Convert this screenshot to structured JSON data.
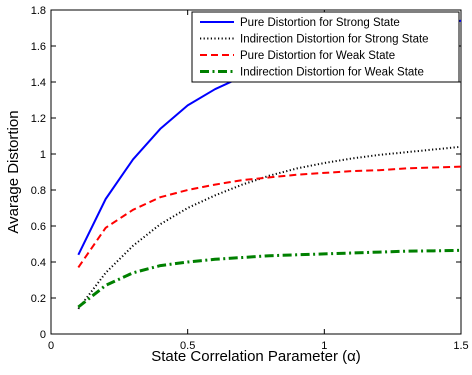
{
  "chart_data": {
    "type": "line",
    "title": "",
    "xlabel": "State Correlation Parameter (α)",
    "ylabel": "Avarage Distortion",
    "xlim": [
      0,
      1.5
    ],
    "ylim": [
      0,
      1.8
    ],
    "xticks": [
      "0",
      "0.5",
      "1",
      "1.5"
    ],
    "yticks": [
      "0",
      "0.2",
      "0.4",
      "0.6",
      "0.8",
      "1",
      "1.2",
      "1.4",
      "1.6",
      "1.8"
    ],
    "grid": false,
    "legend_position": "top-right",
    "series": [
      {
        "name": "Pure Distortion for Strong State",
        "color": "#0000ff",
        "style": "solid",
        "x": [
          0.1,
          0.2,
          0.3,
          0.4,
          0.5,
          0.6,
          0.7,
          0.8,
          0.9,
          1.0,
          1.1,
          1.2,
          1.3,
          1.4,
          1.5
        ],
        "y": [
          0.44,
          0.75,
          0.97,
          1.14,
          1.27,
          1.36,
          1.43,
          1.49,
          1.54,
          1.58,
          1.62,
          1.66,
          1.69,
          1.72,
          1.74
        ]
      },
      {
        "name": "Indirection Distortion for Strong State",
        "color": "#000000",
        "style": "dotted",
        "x": [
          0.1,
          0.2,
          0.3,
          0.4,
          0.5,
          0.6,
          0.7,
          0.8,
          0.9,
          1.0,
          1.1,
          1.2,
          1.3,
          1.4,
          1.5
        ],
        "y": [
          0.14,
          0.34,
          0.49,
          0.61,
          0.7,
          0.77,
          0.83,
          0.88,
          0.92,
          0.95,
          0.975,
          0.995,
          1.01,
          1.025,
          1.04
        ]
      },
      {
        "name": "Pure Distortion for Weak State",
        "color": "#ff0000",
        "style": "dashed",
        "x": [
          0.1,
          0.2,
          0.3,
          0.4,
          0.5,
          0.6,
          0.7,
          0.8,
          0.9,
          1.0,
          1.1,
          1.2,
          1.3,
          1.4,
          1.5
        ],
        "y": [
          0.37,
          0.59,
          0.69,
          0.76,
          0.8,
          0.83,
          0.855,
          0.87,
          0.885,
          0.895,
          0.905,
          0.91,
          0.92,
          0.925,
          0.93
        ]
      },
      {
        "name": "Indirection Distortion for Weak State",
        "color": "#008000",
        "style": "dashdot",
        "x": [
          0.1,
          0.2,
          0.3,
          0.4,
          0.5,
          0.6,
          0.7,
          0.8,
          0.9,
          1.0,
          1.1,
          1.2,
          1.3,
          1.4,
          1.5
        ],
        "y": [
          0.15,
          0.27,
          0.34,
          0.38,
          0.4,
          0.415,
          0.425,
          0.435,
          0.44,
          0.445,
          0.45,
          0.455,
          0.46,
          0.462,
          0.465
        ]
      }
    ]
  }
}
